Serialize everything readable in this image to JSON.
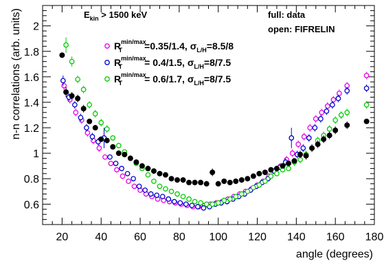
{
  "chart_data": {
    "type": "scatter",
    "xlabel": "angle (degrees)",
    "ylabel": "n-n correlations (arb. units)",
    "xlim": [
      10,
      180
    ],
    "ylim": [
      0.44,
      2.16
    ],
    "x_ticks": [
      20,
      40,
      60,
      80,
      100,
      120,
      140,
      160,
      180
    ],
    "y_ticks": [
      0.6,
      0.8,
      1,
      1.2,
      1.4,
      1.6,
      1.8,
      2
    ],
    "annotations": {
      "energy_cut": {
        "main": "E",
        "sub": "kin",
        "rest": " > 1500 keV"
      },
      "full_label": "full: data",
      "open_label": "open: FIFRELIN"
    },
    "legend_placement": "top-center",
    "series": [
      {
        "id": "data",
        "style": "filled",
        "color": "#000000",
        "x": [
          20,
          22,
          25,
          28,
          31,
          34,
          37,
          40,
          43,
          46,
          49,
          52,
          55,
          58,
          61,
          64,
          67,
          70,
          73,
          76,
          79,
          82,
          85,
          88,
          91,
          94,
          97,
          100,
          103,
          106,
          109,
          112,
          115,
          118,
          121,
          124,
          127,
          130,
          133,
          136,
          139,
          142,
          145,
          148,
          151,
          154,
          157,
          160,
          166,
          176
        ],
        "y": [
          1.77,
          1.48,
          1.45,
          1.43,
          1.35,
          1.25,
          1.2,
          1.11,
          1.1,
          1.05,
          1.0,
          0.99,
          0.96,
          0.93,
          0.9,
          0.88,
          0.86,
          0.84,
          0.83,
          0.8,
          0.79,
          0.79,
          0.77,
          0.77,
          0.77,
          0.76,
          0.85,
          0.76,
          0.78,
          0.77,
          0.78,
          0.79,
          0.8,
          0.82,
          0.84,
          0.85,
          0.87,
          0.88,
          0.9,
          0.92,
          0.94,
          0.99,
          0.98,
          1.04,
          1.07,
          1.11,
          1.14,
          1.18,
          1.22,
          1.25
        ],
        "err": [
          0.02,
          0.04,
          0.03,
          0.03,
          0.03,
          0.02,
          0.02,
          0.02,
          0.02,
          0.02,
          0.02,
          0.02,
          0.02,
          0.02,
          0.02,
          0.02,
          0.02,
          0.02,
          0.02,
          0.02,
          0.02,
          0.02,
          0.02,
          0.02,
          0.02,
          0.02,
          0.03,
          0.02,
          0.02,
          0.02,
          0.02,
          0.02,
          0.02,
          0.02,
          0.02,
          0.02,
          0.02,
          0.02,
          0.02,
          0.02,
          0.02,
          0.03,
          0.03,
          0.03,
          0.03,
          0.03,
          0.03,
          0.03,
          0.03,
          0.02
        ]
      },
      {
        "id": "fifrelin-a",
        "style": "open",
        "color": "#e600e6",
        "legend": {
          "R": "R",
          "sup": "min/max",
          "sub": "T",
          "mid": "=0.35/1.4, ",
          "sigma": "σ",
          "sigsub": "L/H",
          "end": "=8.5/8"
        },
        "x": [
          21,
          24,
          27,
          30,
          33,
          36,
          39,
          42,
          45,
          48,
          51,
          54,
          57,
          60,
          63,
          66,
          69,
          72,
          75,
          78,
          81,
          84,
          87,
          90,
          93,
          96,
          99,
          102,
          105,
          108,
          111,
          114,
          117,
          120,
          123,
          126,
          129,
          132,
          135,
          138,
          141,
          144,
          147,
          150,
          153,
          156,
          159,
          162,
          166,
          176
        ],
        "y": [
          1.53,
          1.42,
          1.32,
          1.26,
          1.16,
          1.1,
          1.04,
          0.97,
          0.92,
          0.87,
          0.82,
          0.78,
          0.74,
          0.71,
          0.68,
          0.66,
          0.64,
          0.63,
          0.62,
          0.61,
          0.6,
          0.59,
          0.58,
          0.58,
          0.59,
          0.6,
          0.61,
          0.62,
          0.64,
          0.66,
          0.68,
          0.7,
          0.72,
          0.75,
          0.78,
          0.82,
          0.86,
          0.9,
          0.95,
          1.0,
          1.07,
          1.13,
          1.2,
          1.27,
          1.32,
          1.37,
          1.42,
          1.47,
          1.53,
          1.61
        ],
        "err": [
          0.04,
          0.03,
          0.03,
          0.03,
          0.03,
          0.03,
          0.03,
          0.02,
          0.02,
          0.02,
          0.02,
          0.02,
          0.02,
          0.02,
          0.02,
          0.02,
          0.02,
          0.02,
          0.02,
          0.02,
          0.02,
          0.02,
          0.02,
          0.02,
          0.02,
          0.02,
          0.02,
          0.02,
          0.02,
          0.02,
          0.02,
          0.02,
          0.02,
          0.02,
          0.02,
          0.02,
          0.02,
          0.02,
          0.03,
          0.03,
          0.03,
          0.03,
          0.03,
          0.03,
          0.03,
          0.03,
          0.03,
          0.03,
          0.03,
          0.03
        ]
      },
      {
        "id": "fifrelin-b",
        "style": "open",
        "color": "#0000cc",
        "legend": {
          "R": "R",
          "sup": "min/max",
          "sub": "T",
          "mid": "=  0.4/1.5, ",
          "sigma": "σ",
          "sigsub": "L/H",
          "end": "=8/7.5"
        },
        "x": [
          20.5,
          23.5,
          26.5,
          29.5,
          32.5,
          35.5,
          38.5,
          41.5,
          44.5,
          47.5,
          50.5,
          53.5,
          56.5,
          59.5,
          62.5,
          65.5,
          68.5,
          71.5,
          74.5,
          77.5,
          80.5,
          83.5,
          86.5,
          89.5,
          92.5,
          95.5,
          98.5,
          101.5,
          104.5,
          107.5,
          110.5,
          113.5,
          116.5,
          119.5,
          122.5,
          125.5,
          128.5,
          131.5,
          134.5,
          137.5,
          140.5,
          143.5,
          146.5,
          149.5,
          152.5,
          155.5,
          158.5,
          161.5,
          166,
          176
        ],
        "y": [
          1.57,
          1.44,
          1.38,
          1.28,
          1.2,
          1.13,
          1.09,
          1.12,
          0.97,
          0.92,
          0.88,
          0.84,
          0.8,
          0.74,
          0.71,
          0.68,
          0.67,
          0.66,
          0.64,
          0.62,
          0.61,
          0.6,
          0.59,
          0.58,
          0.57,
          0.58,
          0.6,
          0.61,
          0.62,
          0.64,
          0.66,
          0.68,
          0.71,
          0.74,
          0.77,
          0.8,
          0.86,
          0.89,
          0.93,
          1.12,
          0.99,
          1.04,
          1.12,
          1.2,
          1.27,
          1.33,
          1.38,
          1.43,
          1.49,
          1.51
        ],
        "err": [
          0.04,
          0.03,
          0.03,
          0.03,
          0.03,
          0.03,
          0.03,
          0.08,
          0.02,
          0.02,
          0.02,
          0.02,
          0.02,
          0.02,
          0.02,
          0.02,
          0.02,
          0.02,
          0.02,
          0.02,
          0.02,
          0.02,
          0.02,
          0.02,
          0.02,
          0.02,
          0.02,
          0.02,
          0.02,
          0.02,
          0.02,
          0.02,
          0.02,
          0.02,
          0.02,
          0.02,
          0.02,
          0.02,
          0.03,
          0.08,
          0.03,
          0.03,
          0.03,
          0.03,
          0.03,
          0.03,
          0.03,
          0.03,
          0.03,
          0.03
        ]
      },
      {
        "id": "fifrelin-c",
        "style": "open",
        "color": "#00cc00",
        "legend": {
          "R": "R",
          "sup": "min/max",
          "sub": "T",
          "mid": "=  0.6/1.7, ",
          "sigma": "σ",
          "sigsub": "L/H",
          "end": "=8/7.5"
        },
        "x": [
          22,
          25,
          28,
          31,
          34,
          37,
          40,
          43,
          46,
          49,
          52,
          55,
          58,
          61,
          64,
          67,
          70,
          73,
          76,
          79,
          82,
          85,
          88,
          91,
          94,
          97,
          100,
          103,
          106,
          109,
          112,
          115,
          118,
          121,
          124,
          127,
          130,
          133,
          136,
          139,
          142,
          145,
          148,
          151,
          154,
          157,
          160,
          163,
          166,
          176
        ],
        "y": [
          1.85,
          1.72,
          1.58,
          1.5,
          1.38,
          1.31,
          1.24,
          1.19,
          1.12,
          1.06,
          1.01,
          0.96,
          0.92,
          0.88,
          0.83,
          0.78,
          0.74,
          0.72,
          0.7,
          0.68,
          0.66,
          0.64,
          0.62,
          0.61,
          0.6,
          0.6,
          0.61,
          0.63,
          0.64,
          0.66,
          0.68,
          0.7,
          0.73,
          0.75,
          0.78,
          0.82,
          0.84,
          0.87,
          0.88,
          0.93,
          0.95,
          0.99,
          1.04,
          1.1,
          1.14,
          1.19,
          1.26,
          1.3,
          1.32,
          1.38
        ],
        "err": [
          0.06,
          0.04,
          0.03,
          0.03,
          0.03,
          0.03,
          0.03,
          0.03,
          0.02,
          0.02,
          0.02,
          0.02,
          0.02,
          0.02,
          0.02,
          0.02,
          0.02,
          0.02,
          0.02,
          0.02,
          0.02,
          0.02,
          0.02,
          0.02,
          0.02,
          0.02,
          0.02,
          0.02,
          0.02,
          0.02,
          0.02,
          0.02,
          0.02,
          0.02,
          0.02,
          0.02,
          0.02,
          0.02,
          0.02,
          0.03,
          0.03,
          0.03,
          0.03,
          0.03,
          0.03,
          0.03,
          0.03,
          0.03,
          0.03,
          0.03
        ]
      }
    ]
  }
}
